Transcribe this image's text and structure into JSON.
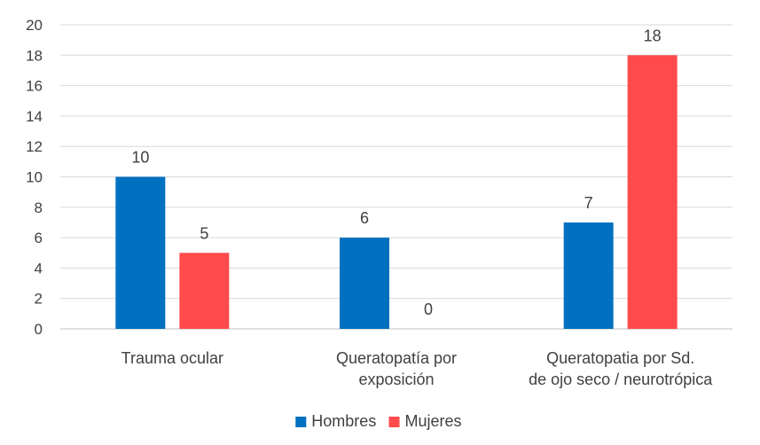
{
  "chart_data": {
    "type": "bar",
    "categories": [
      [
        "Trauma ocular"
      ],
      [
        "Queratopatía por",
        "exposición"
      ],
      [
        "Queratopatia por Sd.",
        "de ojo seco / neurotrópica"
      ]
    ],
    "series": [
      {
        "name": "Hombres",
        "values": [
          10,
          6,
          7
        ],
        "color": "#0070c0"
      },
      {
        "name": "Mujeres",
        "values": [
          5,
          0,
          18
        ],
        "color": "#ff4b4b"
      }
    ],
    "ylim": [
      0,
      20
    ],
    "yticks": [
      0,
      2,
      4,
      6,
      8,
      10,
      12,
      14,
      16,
      18,
      20
    ],
    "grid": true,
    "legend": "bottom-center",
    "data_labels": true
  }
}
